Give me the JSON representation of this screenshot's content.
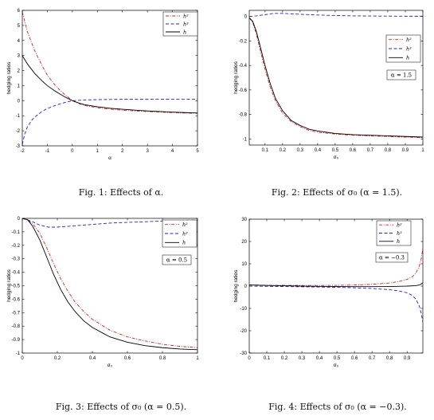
{
  "chart_data": [
    {
      "type": "line",
      "caption": "Fig. 1: Effects of α.",
      "xlabel": "α",
      "ylabel": "hedging ratios",
      "xlim": [
        -2,
        5
      ],
      "ylim": [
        -3,
        6
      ],
      "xticks": [
        -2,
        -1,
        0,
        1,
        2,
        3,
        4,
        5
      ],
      "yticks": [
        -3,
        -2,
        -1,
        0,
        1,
        2,
        3,
        4,
        5,
        6
      ],
      "legend_position": "top-right",
      "annotation": "",
      "series": [
        {
          "name": "h²",
          "style": "dashdot",
          "color": "#d62020",
          "x": [
            -2,
            -1.8,
            -1.5,
            -1.2,
            -1,
            -0.7,
            -0.5,
            -0.3,
            0,
            0.3,
            0.5,
            1,
            1.5,
            2,
            2.5,
            3,
            3.5,
            4,
            4.5,
            5
          ],
          "y": [
            5.9,
            4.6,
            3.3,
            2.3,
            1.7,
            1.05,
            0.7,
            0.4,
            0.0,
            -0.22,
            -0.32,
            -0.47,
            -0.56,
            -0.63,
            -0.68,
            -0.72,
            -0.76,
            -0.79,
            -0.82,
            -0.84
          ]
        },
        {
          "name": "h³",
          "style": "dashed",
          "color": "#2020c8",
          "x": [
            -2,
            -1.9,
            -1.8,
            -1.6,
            -1.4,
            -1.2,
            -1,
            -0.7,
            -0.5,
            -0.3,
            0,
            0.5,
            1,
            1.5,
            2,
            3,
            4,
            5
          ],
          "y": [
            -2.9,
            -2.2,
            -1.75,
            -1.25,
            -0.95,
            -0.7,
            -0.52,
            -0.33,
            -0.22,
            -0.12,
            0.0,
            0.05,
            0.07,
            0.08,
            0.09,
            0.09,
            0.1,
            0.1
          ]
        },
        {
          "name": "h",
          "style": "solid",
          "color": "#000000",
          "x": [
            -2,
            -1.8,
            -1.5,
            -1.2,
            -1,
            -0.7,
            -0.5,
            -0.3,
            0,
            0.3,
            0.5,
            1,
            1.5,
            2,
            2.5,
            3,
            3.5,
            4,
            4.5,
            5
          ],
          "y": [
            3.0,
            2.45,
            1.8,
            1.3,
            1.0,
            0.65,
            0.45,
            0.25,
            0.0,
            -0.18,
            -0.27,
            -0.4,
            -0.5,
            -0.57,
            -0.63,
            -0.68,
            -0.72,
            -0.76,
            -0.79,
            -0.82
          ]
        }
      ]
    },
    {
      "type": "line",
      "caption": "Fig. 2: Effects of σ₀ (α = 1.5).",
      "xlabel": "σ₀",
      "ylabel": "hedging ratios",
      "xlim": [
        0.01,
        1
      ],
      "ylim": [
        -1.05,
        0.05
      ],
      "xticks": [
        0.1,
        0.2,
        0.3,
        0.4,
        0.5,
        0.6,
        0.7,
        0.8,
        0.9,
        1
      ],
      "yticks": [
        -1,
        -0.8,
        -0.6,
        -0.4,
        -0.2,
        0
      ],
      "legend_position": "top-right",
      "annotation": "α = 1.5",
      "series": [
        {
          "name": "h²",
          "style": "dashdot",
          "color": "#d62020",
          "x": [
            0.01,
            0.03,
            0.05,
            0.07,
            0.1,
            0.13,
            0.16,
            0.2,
            0.25,
            0.3,
            0.35,
            0.4,
            0.5,
            0.6,
            0.7,
            0.8,
            0.9,
            1
          ],
          "y": [
            -0.01,
            -0.05,
            -0.14,
            -0.26,
            -0.43,
            -0.58,
            -0.69,
            -0.79,
            -0.86,
            -0.9,
            -0.93,
            -0.945,
            -0.96,
            -0.97,
            -0.975,
            -0.98,
            -0.985,
            -0.99
          ]
        },
        {
          "name": "h³",
          "style": "dashed",
          "color": "#2020c8",
          "x": [
            0.01,
            0.05,
            0.1,
            0.15,
            0.2,
            0.25,
            0.3,
            0.4,
            0.5,
            0.6,
            0.7,
            0.8,
            0.9,
            1
          ],
          "y": [
            0.0,
            0.005,
            0.015,
            0.025,
            0.025,
            0.022,
            0.018,
            0.012,
            0.008,
            0.005,
            0.004,
            0.003,
            0.002,
            0.002
          ]
        },
        {
          "name": "h",
          "style": "solid",
          "color": "#000000",
          "x": [
            0.01,
            0.03,
            0.05,
            0.07,
            0.1,
            0.13,
            0.16,
            0.2,
            0.25,
            0.3,
            0.35,
            0.4,
            0.5,
            0.6,
            0.7,
            0.8,
            0.9,
            1
          ],
          "y": [
            -0.01,
            -0.04,
            -0.12,
            -0.23,
            -0.4,
            -0.55,
            -0.67,
            -0.77,
            -0.85,
            -0.89,
            -0.92,
            -0.935,
            -0.955,
            -0.965,
            -0.97,
            -0.975,
            -0.98,
            -0.985
          ]
        }
      ]
    },
    {
      "type": "line",
      "caption": "Fig. 3: Effects of σ₀ (α = 0.5).",
      "xlabel": "σ₀",
      "ylabel": "hedging ratios",
      "xlim": [
        0,
        1
      ],
      "ylim": [
        -1,
        0
      ],
      "xticks": [
        0,
        0.2,
        0.4,
        0.6,
        0.8,
        1
      ],
      "yticks": [
        -1,
        -0.9,
        -0.8,
        -0.7,
        -0.6,
        -0.5,
        -0.4,
        -0.3,
        -0.2,
        -0.1,
        0
      ],
      "legend_position": "top-right",
      "annotation": "α = 0.5",
      "series": [
        {
          "name": "h²",
          "style": "dashdot",
          "color": "#d62020",
          "x": [
            0,
            0.03,
            0.06,
            0.1,
            0.14,
            0.18,
            0.22,
            0.26,
            0.3,
            0.35,
            0.4,
            0.5,
            0.6,
            0.7,
            0.8,
            0.9,
            1
          ],
          "y": [
            0.0,
            -0.01,
            -0.04,
            -0.11,
            -0.22,
            -0.34,
            -0.45,
            -0.54,
            -0.62,
            -0.69,
            -0.75,
            -0.83,
            -0.88,
            -0.91,
            -0.935,
            -0.95,
            -0.96
          ]
        },
        {
          "name": "h³",
          "style": "dashed",
          "color": "#2020c8",
          "x": [
            0,
            0.05,
            0.1,
            0.15,
            0.2,
            0.25,
            0.3,
            0.4,
            0.5,
            0.6,
            0.7,
            0.8,
            0.9,
            1
          ],
          "y": [
            0.0,
            -0.02,
            -0.05,
            -0.065,
            -0.065,
            -0.06,
            -0.055,
            -0.045,
            -0.035,
            -0.03,
            -0.025,
            -0.02,
            -0.015,
            -0.012
          ]
        },
        {
          "name": "h",
          "style": "solid",
          "color": "#000000",
          "x": [
            0,
            0.03,
            0.06,
            0.1,
            0.14,
            0.18,
            0.22,
            0.26,
            0.3,
            0.35,
            0.4,
            0.5,
            0.6,
            0.7,
            0.8,
            0.9,
            1
          ],
          "y": [
            0.0,
            -0.01,
            -0.06,
            -0.16,
            -0.29,
            -0.42,
            -0.53,
            -0.62,
            -0.69,
            -0.76,
            -0.81,
            -0.88,
            -0.92,
            -0.945,
            -0.96,
            -0.97,
            -0.975
          ]
        }
      ]
    },
    {
      "type": "line",
      "caption": "Fig. 4: Effects of σ₀ (α = −0.3).",
      "xlabel": "σ₀",
      "ylabel": "hedging ratios",
      "xlim": [
        0,
        0.99
      ],
      "ylim": [
        -30,
        30
      ],
      "xticks": [
        0,
        0.1,
        0.2,
        0.3,
        0.4,
        0.5,
        0.6,
        0.7,
        0.8,
        0.9
      ],
      "yticks": [
        -30,
        -20,
        -10,
        0,
        10,
        20,
        30
      ],
      "legend_position": "top-right",
      "annotation": "α = −0.3",
      "series": [
        {
          "name": "h²",
          "style": "dashdot",
          "color": "#d62020",
          "x": [
            0,
            0.1,
            0.2,
            0.3,
            0.4,
            0.5,
            0.6,
            0.7,
            0.8,
            0.85,
            0.9,
            0.93,
            0.95,
            0.97,
            0.98,
            0.99
          ],
          "y": [
            0.5,
            0.4,
            0.35,
            0.3,
            0.3,
            0.35,
            0.5,
            0.8,
            1.4,
            2.0,
            3.0,
            4.2,
            5.8,
            9.0,
            12.0,
            17.0
          ]
        },
        {
          "name": "h³",
          "style": "dashed",
          "color": "#2020c8",
          "x": [
            0,
            0.1,
            0.2,
            0.3,
            0.4,
            0.5,
            0.6,
            0.7,
            0.8,
            0.85,
            0.9,
            0.93,
            0.95,
            0.97,
            0.98,
            0.99
          ],
          "y": [
            0.0,
            -0.1,
            -0.2,
            -0.3,
            -0.4,
            -0.55,
            -0.75,
            -1.05,
            -1.6,
            -2.1,
            -3.0,
            -4.2,
            -5.8,
            -9.0,
            -12.0,
            -16.0
          ]
        },
        {
          "name": "h",
          "style": "solid",
          "color": "#000000",
          "x": [
            0,
            0.1,
            0.2,
            0.3,
            0.4,
            0.5,
            0.6,
            0.7,
            0.8,
            0.9,
            0.95,
            0.97,
            0.98,
            0.99
          ],
          "y": [
            0.5,
            0.3,
            0.15,
            0.0,
            -0.1,
            -0.2,
            -0.25,
            -0.25,
            -0.2,
            0.0,
            0.2,
            0.5,
            0.9,
            1.5
          ]
        }
      ]
    }
  ]
}
